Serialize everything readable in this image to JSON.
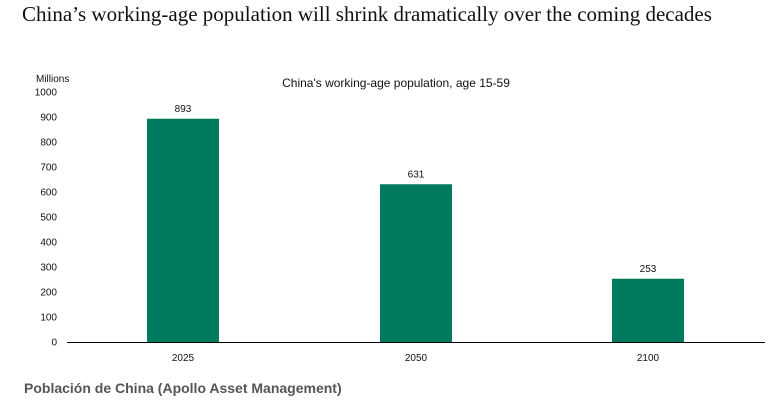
{
  "headline": "China’s working-age population will shrink dramatically over the coming decades",
  "caption": "Población de China (Apollo Asset Management)",
  "colors": {
    "bar": "#007A5E",
    "axis": "#000000",
    "text": "#111111"
  },
  "chart_data": {
    "type": "bar",
    "title": "China's working-age population, age 15-59",
    "ylabel": "Millions",
    "xlabel": "",
    "categories": [
      "2025",
      "2050",
      "2100"
    ],
    "values": [
      893,
      631,
      253
    ],
    "data_labels": [
      "893",
      "631",
      "253"
    ],
    "ylim": [
      0,
      1000
    ],
    "yticks": [
      0,
      100,
      200,
      300,
      400,
      500,
      600,
      700,
      800,
      900,
      1000
    ],
    "grid": false,
    "legend": "none"
  }
}
